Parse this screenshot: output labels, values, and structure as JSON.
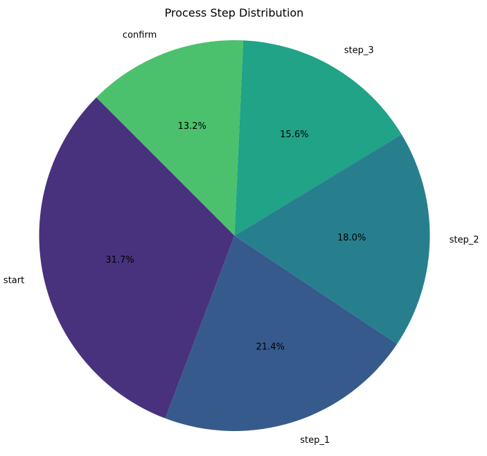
{
  "chart_data": {
    "type": "pie",
    "title": "Process Step Distribution",
    "slices": [
      {
        "label": "start",
        "value": 31.7,
        "percent_label": "31.7%",
        "color": "#48327d"
      },
      {
        "label": "step_1",
        "value": 21.4,
        "percent_label": "21.4%",
        "color": "#375a8c"
      },
      {
        "label": "step_2",
        "value": 18.0,
        "percent_label": "18.0%",
        "color": "#277f8e"
      },
      {
        "label": "step_3",
        "value": 15.6,
        "percent_label": "15.6%",
        "color": "#20a386"
      },
      {
        "label": "confirm",
        "value": 13.2,
        "percent_label": "13.2%",
        "color": "#4bc16d"
      }
    ],
    "start_angle_deg": 135,
    "direction": "counterclockwise",
    "legend": "none"
  }
}
